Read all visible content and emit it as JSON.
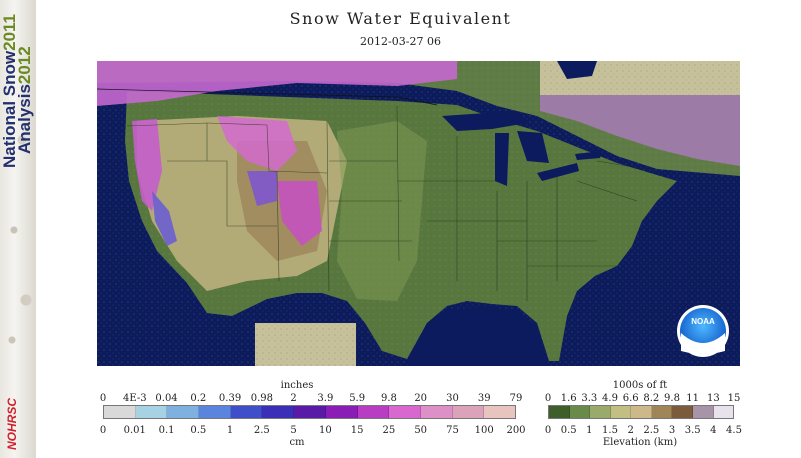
{
  "sidebar": {
    "line1": "National Snow",
    "year1": "2011",
    "line2": "Analysis",
    "year2": "2012",
    "logo": "NOHRSC"
  },
  "header": {
    "title": "Snow Water Equivalent",
    "datetime": "2012-03-27 06"
  },
  "map": {
    "logo": "NOAA"
  },
  "swe_legend": {
    "unit_top": "inches",
    "unit_bottom": "cm",
    "inches_ticks": [
      "0",
      "4E-3",
      "0.04",
      "0.2",
      "0.39",
      "0.98",
      "2",
      "3.9",
      "5.9",
      "9.8",
      "20",
      "30",
      "39",
      "79"
    ],
    "cm_ticks": [
      "0",
      "0.01",
      "0.1",
      "0.5",
      "1",
      "2.5",
      "5",
      "10",
      "15",
      "25",
      "50",
      "75",
      "100",
      "200"
    ],
    "colors": [
      "#d9d9d9",
      "#a6d2e3",
      "#7fb1e0",
      "#5a84de",
      "#3f4fc9",
      "#3b2fb8",
      "#5a1aa8",
      "#8a1db5",
      "#b83dc2",
      "#d867d0",
      "#dd8fc7",
      "#dba3b9",
      "#e8c4be"
    ]
  },
  "elev_legend": {
    "unit_top": "1000s of ft",
    "unit_bottom": "Elevation (km)",
    "ft_ticks": [
      "0",
      "1.6",
      "3.3",
      "4.9",
      "6.6",
      "8.2",
      "9.8",
      "11",
      "13",
      "15"
    ],
    "km_ticks": [
      "0",
      "0.5",
      "1",
      "1.5",
      "2",
      "2.5",
      "3",
      "3.5",
      "4",
      "4.5"
    ],
    "colors": [
      "#3e5e2c",
      "#6a8a4a",
      "#9aaa6a",
      "#c3bf83",
      "#cdb88a",
      "#a08656",
      "#7a5b3c",
      "#a894a8",
      "#e8e2ec"
    ]
  }
}
